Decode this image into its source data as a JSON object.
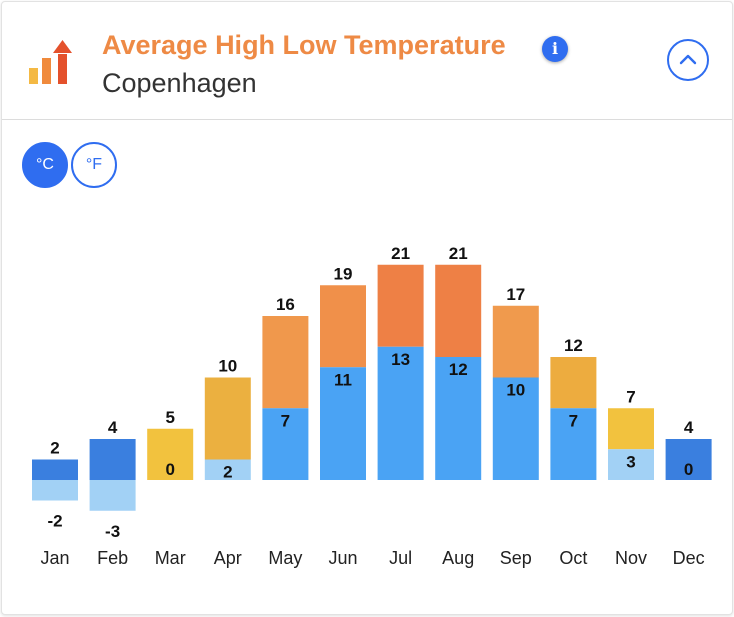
{
  "header": {
    "title": "Average High Low Temperature",
    "subtitle": "Copenhagen",
    "info_icon": "info-icon",
    "collapse_icon": "chevron-up-icon",
    "logo_icon": "rising-bars-icon"
  },
  "units": {
    "celsius_label": "°C",
    "fahrenheit_label": "°F",
    "selected": "°C"
  },
  "colors": {
    "accent": "#2f6df0",
    "title": "#ee8a45"
  },
  "chart_data": {
    "type": "bar",
    "categories": [
      "Jan",
      "Feb",
      "Mar",
      "Apr",
      "May",
      "Jun",
      "Jul",
      "Aug",
      "Sep",
      "Oct",
      "Nov",
      "Dec"
    ],
    "series": [
      {
        "values": [
          2,
          4,
          5,
          10,
          16,
          19,
          21,
          21,
          17,
          12,
          7,
          4
        ]
      },
      {
        "values": [
          -2,
          -3,
          0,
          2,
          7,
          11,
          13,
          12,
          10,
          7,
          3,
          0
        ]
      }
    ],
    "high_colors": [
      "#3a7fdf",
      "#3a7fdf",
      "#f2c23e",
      "#ebb040",
      "#f0984c",
      "#f0904a",
      "#ee8045",
      "#ee8045",
      "#f09a4d",
      "#edac3f",
      "#f2c23e",
      "#3a7fdf"
    ],
    "low_colors": [
      "#a2d1f5",
      "#a2d1f5",
      "#f2c23e",
      "#a2d1f5",
      "#4aa3f4",
      "#4aa3f4",
      "#4aa3f4",
      "#4aa3f4",
      "#4aa3f4",
      "#4aa3f4",
      "#a2d1f5",
      "#3a7fdf"
    ],
    "ylim": [
      -3,
      21
    ]
  }
}
